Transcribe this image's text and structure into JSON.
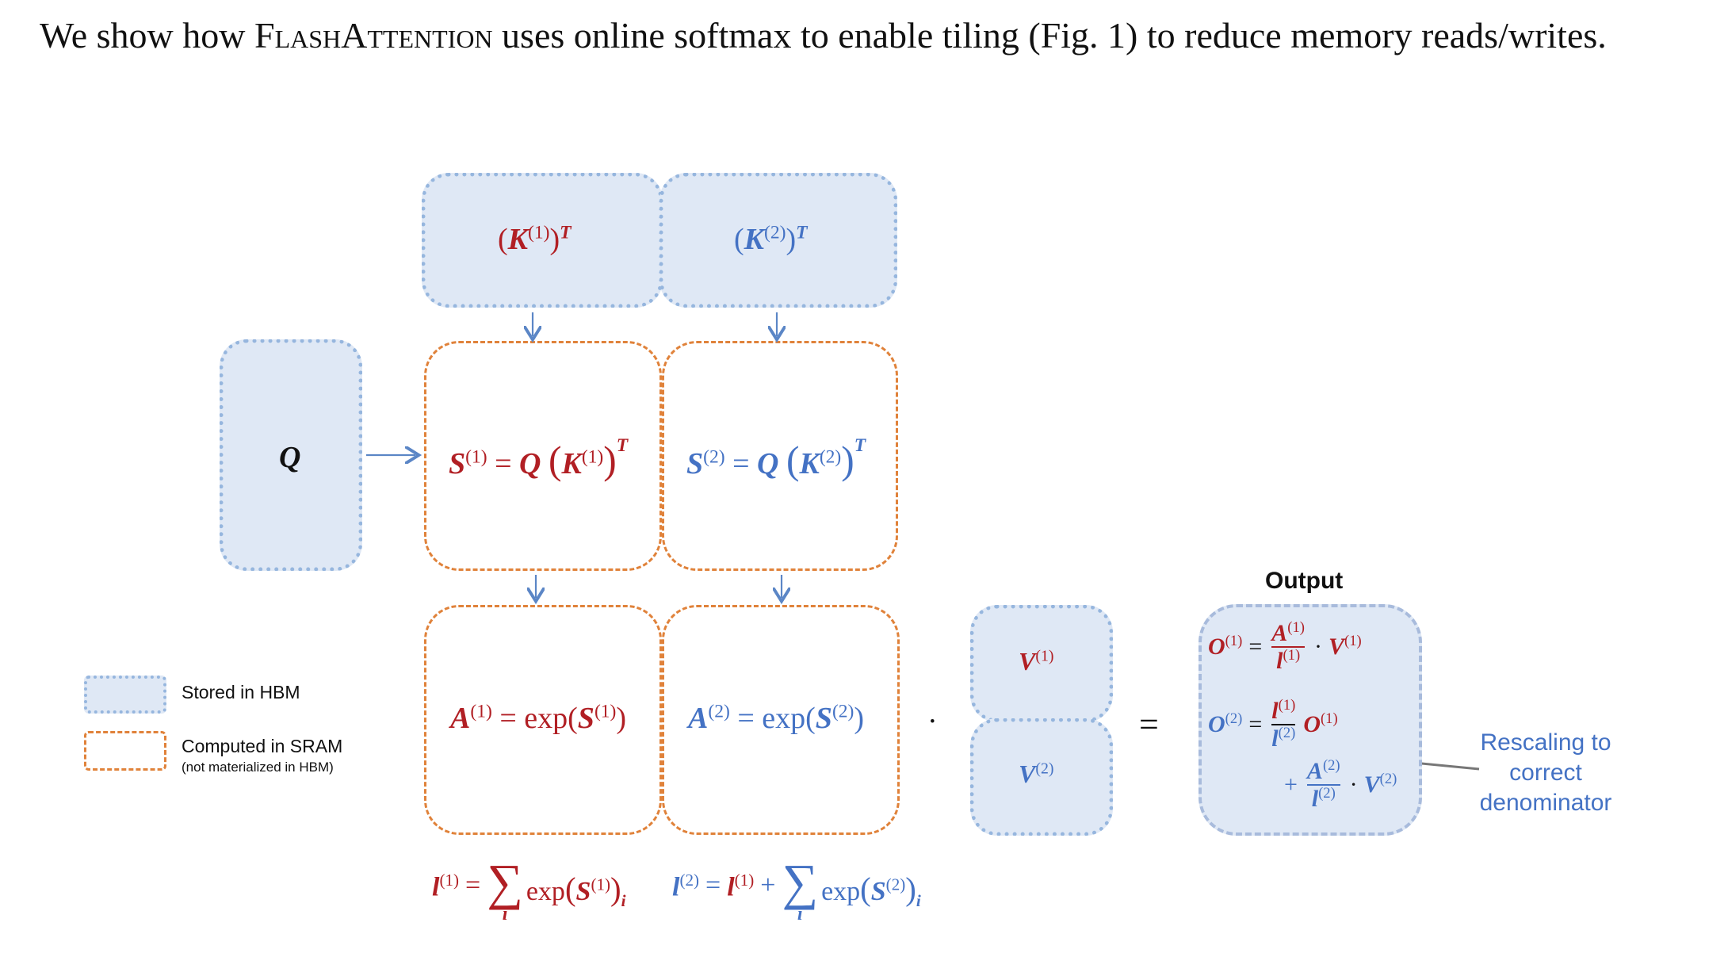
{
  "caption": {
    "pre": "We show how ",
    "name": "FlashAttention",
    "post": " uses online softmax to enable tiling (Fig. 1) to reduce memory reads/writes."
  },
  "diagram": {
    "q_label": "Q",
    "k1": "K",
    "k2": "K",
    "sup1": "(1)",
    "sup2": "(2)",
    "transpose": "T",
    "s1_lhs": "S",
    "s2_lhs": "S",
    "a1_lhs": "A",
    "a2_lhs": "A",
    "exp": "exp",
    "v1": "V",
    "v2": "V",
    "output_title": "Output",
    "o": "O",
    "l": "l",
    "dot": "·",
    "equals": "=",
    "plus": "+",
    "sum": "∑",
    "index_i": "i",
    "rescale_note": [
      "Rescaling to",
      "correct",
      "denominator"
    ]
  },
  "legend": {
    "hbm": "Stored in HBM",
    "sram": "Computed in SRAM",
    "sram_note": "(not materialized in HBM)"
  },
  "colors": {
    "red": "#b11f24",
    "blue": "#4472c4",
    "orange": "#e0823a",
    "hbm_fill": "#dfe8f5"
  }
}
